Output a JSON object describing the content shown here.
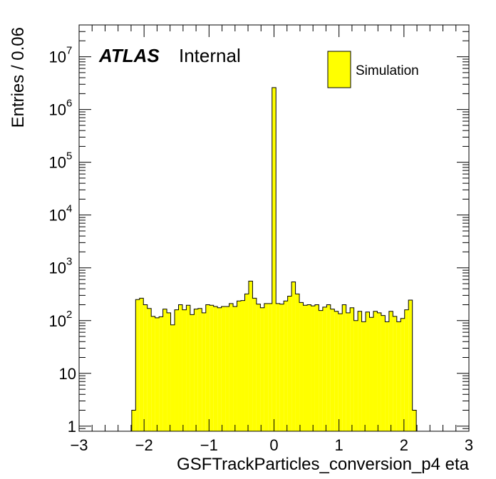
{
  "chart_data": {
    "type": "bar",
    "histogram": true,
    "xlabel": "GSFTrackParticles_conversion_p4 eta",
    "ylabel": "Entries / 0.06",
    "xlim": [
      -3,
      3
    ],
    "ylim": [
      0.8,
      40000000
    ],
    "yscale": "log",
    "bin_width": 0.06,
    "x_ticks": [
      {
        "value": -3,
        "label": "−3"
      },
      {
        "value": -2,
        "label": "−2"
      },
      {
        "value": -1,
        "label": "−1"
      },
      {
        "value": 0,
        "label": "0"
      },
      {
        "value": 1,
        "label": "1"
      },
      {
        "value": 2,
        "label": "2"
      },
      {
        "value": 3,
        "label": "3"
      }
    ],
    "y_ticks": [
      {
        "value": 1,
        "base": "1",
        "exp": ""
      },
      {
        "value": 10,
        "base": "10",
        "exp": ""
      },
      {
        "value": 100,
        "base": "10",
        "exp": "2"
      },
      {
        "value": 1000,
        "base": "10",
        "exp": "3"
      },
      {
        "value": 10000,
        "base": "10",
        "exp": "4"
      },
      {
        "value": 100000,
        "base": "10",
        "exp": "5"
      },
      {
        "value": 1000000,
        "base": "10",
        "exp": "6"
      },
      {
        "value": 10000000,
        "base": "10",
        "exp": "7"
      }
    ],
    "series": [
      {
        "name": "Simulation",
        "fill": "#ffff00",
        "line": "#000000",
        "bins": [
          {
            "x": -2.16,
            "y": 2
          },
          {
            "x": -2.1,
            "y": 250
          },
          {
            "x": -2.04,
            "y": 265
          },
          {
            "x": -1.98,
            "y": 200
          },
          {
            "x": -1.92,
            "y": 170
          },
          {
            "x": -1.86,
            "y": 120
          },
          {
            "x": -1.8,
            "y": 113
          },
          {
            "x": -1.74,
            "y": 118
          },
          {
            "x": -1.68,
            "y": 165
          },
          {
            "x": -1.62,
            "y": 140
          },
          {
            "x": -1.56,
            "y": 83
          },
          {
            "x": -1.5,
            "y": 160
          },
          {
            "x": -1.44,
            "y": 200
          },
          {
            "x": -1.38,
            "y": 160
          },
          {
            "x": -1.32,
            "y": 195
          },
          {
            "x": -1.26,
            "y": 130
          },
          {
            "x": -1.2,
            "y": 165
          },
          {
            "x": -1.14,
            "y": 170
          },
          {
            "x": -1.08,
            "y": 140
          },
          {
            "x": -1.02,
            "y": 200
          },
          {
            "x": -0.96,
            "y": 195
          },
          {
            "x": -0.9,
            "y": 185
          },
          {
            "x": -0.84,
            "y": 175
          },
          {
            "x": -0.78,
            "y": 185
          },
          {
            "x": -0.72,
            "y": 185
          },
          {
            "x": -0.66,
            "y": 210
          },
          {
            "x": -0.6,
            "y": 185
          },
          {
            "x": -0.54,
            "y": 235
          },
          {
            "x": -0.48,
            "y": 240
          },
          {
            "x": -0.42,
            "y": 320
          },
          {
            "x": -0.36,
            "y": 560
          },
          {
            "x": -0.3,
            "y": 265
          },
          {
            "x": -0.24,
            "y": 205
          },
          {
            "x": -0.18,
            "y": 175
          },
          {
            "x": -0.12,
            "y": 210
          },
          {
            "x": -0.06,
            "y": 210
          },
          {
            "x": 0.0,
            "y": 2600000
          },
          {
            "x": 0.06,
            "y": 210
          },
          {
            "x": 0.12,
            "y": 205
          },
          {
            "x": 0.18,
            "y": 235
          },
          {
            "x": 0.24,
            "y": 290
          },
          {
            "x": 0.3,
            "y": 540
          },
          {
            "x": 0.36,
            "y": 320
          },
          {
            "x": 0.42,
            "y": 220
          },
          {
            "x": 0.48,
            "y": 195
          },
          {
            "x": 0.54,
            "y": 200
          },
          {
            "x": 0.6,
            "y": 190
          },
          {
            "x": 0.66,
            "y": 200
          },
          {
            "x": 0.72,
            "y": 155
          },
          {
            "x": 0.78,
            "y": 180
          },
          {
            "x": 0.84,
            "y": 200
          },
          {
            "x": 0.9,
            "y": 165
          },
          {
            "x": 0.96,
            "y": 150
          },
          {
            "x": 1.02,
            "y": 135
          },
          {
            "x": 1.08,
            "y": 200
          },
          {
            "x": 1.14,
            "y": 140
          },
          {
            "x": 1.2,
            "y": 175
          },
          {
            "x": 1.26,
            "y": 100
          },
          {
            "x": 1.32,
            "y": 150
          },
          {
            "x": 1.38,
            "y": 95
          },
          {
            "x": 1.44,
            "y": 145
          },
          {
            "x": 1.5,
            "y": 115
          },
          {
            "x": 1.56,
            "y": 150
          },
          {
            "x": 1.62,
            "y": 140
          },
          {
            "x": 1.68,
            "y": 125
          },
          {
            "x": 1.74,
            "y": 95
          },
          {
            "x": 1.8,
            "y": 150
          },
          {
            "x": 1.86,
            "y": 120
          },
          {
            "x": 1.92,
            "y": 95
          },
          {
            "x": 1.98,
            "y": 110
          },
          {
            "x": 2.04,
            "y": 160
          },
          {
            "x": 2.1,
            "y": 245
          },
          {
            "x": 2.16,
            "y": 2
          }
        ]
      }
    ],
    "legend": {
      "position": "top-right",
      "entries": [
        {
          "label": "Simulation",
          "fill": "#ffff00"
        }
      ]
    },
    "annotations": {
      "atlas": "ATLAS",
      "status": "Internal"
    },
    "grid": false
  }
}
